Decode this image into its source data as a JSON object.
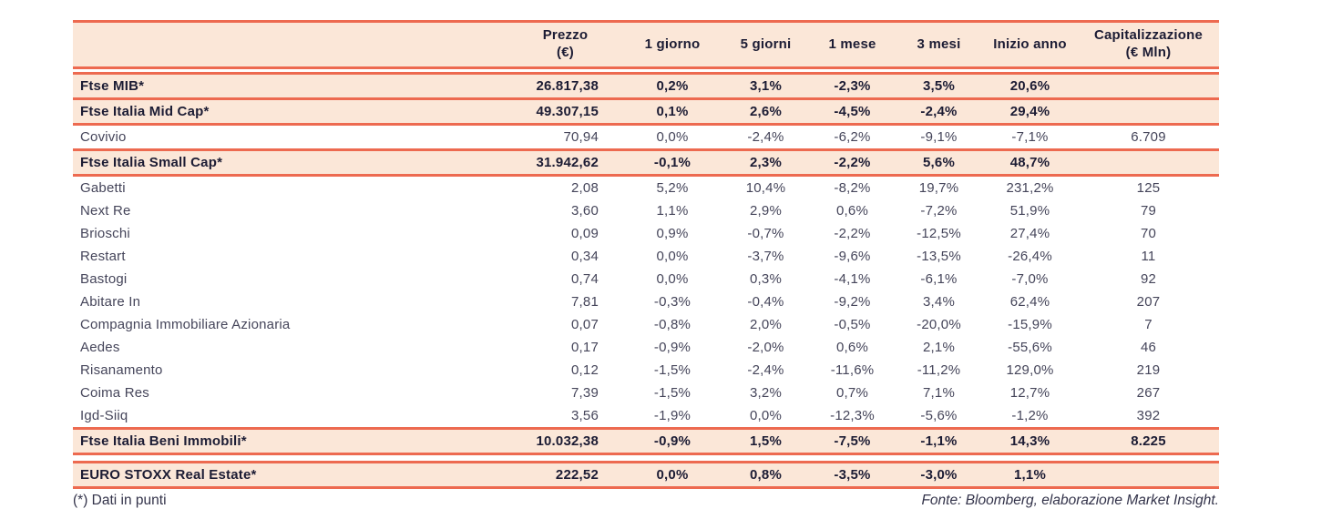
{
  "colors": {
    "accent_coral": "#ED6A50",
    "highlight_peach": "#FBE7D8",
    "text_dark": "#1C1C34",
    "text_regular": "#45455A"
  },
  "table": {
    "columns": [
      "",
      "Prezzo\n(€)",
      "1 giorno",
      "5 giorni",
      "1 mese",
      "3 mesi",
      "Inizio anno",
      "Capitalizzazione\n(€ Mln)"
    ],
    "rows": [
      {
        "label": "Ftse MIB*",
        "type": "index",
        "gap_before": true,
        "cells": [
          "26.817,38",
          "0,2%",
          "3,1%",
          "-2,3%",
          "3,5%",
          "20,6%",
          ""
        ]
      },
      {
        "label": "Ftse Italia Mid Cap*",
        "type": "index",
        "gap_before": false,
        "cells": [
          "49.307,15",
          "0,1%",
          "2,6%",
          "-4,5%",
          "-2,4%",
          "29,4%",
          ""
        ]
      },
      {
        "label": "Covivio",
        "type": "stock",
        "bordered": true,
        "cells": [
          "70,94",
          "0,0%",
          "-2,4%",
          "-6,2%",
          "-9,1%",
          "-7,1%",
          "6.709"
        ]
      },
      {
        "label": "Ftse Italia Small Cap*",
        "type": "index",
        "gap_before": false,
        "cells": [
          "31.942,62",
          "-0,1%",
          "2,3%",
          "-2,2%",
          "5,6%",
          "48,7%",
          ""
        ]
      },
      {
        "label": "Gabetti",
        "type": "stock",
        "bordered": false,
        "cells": [
          "2,08",
          "5,2%",
          "10,4%",
          "-8,2%",
          "19,7%",
          "231,2%",
          "125"
        ]
      },
      {
        "label": "Next Re",
        "type": "stock",
        "bordered": false,
        "cells": [
          "3,60",
          "1,1%",
          "2,9%",
          "0,6%",
          "-7,2%",
          "51,9%",
          "79"
        ]
      },
      {
        "label": "Brioschi",
        "type": "stock",
        "bordered": false,
        "cells": [
          "0,09",
          "0,9%",
          "-0,7%",
          "-2,2%",
          "-12,5%",
          "27,4%",
          "70"
        ]
      },
      {
        "label": "Restart",
        "type": "stock",
        "bordered": false,
        "cells": [
          "0,34",
          "0,0%",
          "-3,7%",
          "-9,6%",
          "-13,5%",
          "-26,4%",
          "11"
        ]
      },
      {
        "label": "Bastogi",
        "type": "stock",
        "bordered": false,
        "cells": [
          "0,74",
          "0,0%",
          "0,3%",
          "-4,1%",
          "-6,1%",
          "-7,0%",
          "92"
        ]
      },
      {
        "label": "Abitare In",
        "type": "stock",
        "bordered": false,
        "cells": [
          "7,81",
          "-0,3%",
          "-0,4%",
          "-9,2%",
          "3,4%",
          "62,4%",
          "207"
        ]
      },
      {
        "label": "Compagnia Immobiliare Azionaria",
        "type": "stock",
        "bordered": false,
        "cells": [
          "0,07",
          "-0,8%",
          "2,0%",
          "-0,5%",
          "-20,0%",
          "-15,9%",
          "7"
        ]
      },
      {
        "label": "Aedes",
        "type": "stock",
        "bordered": false,
        "cells": [
          "0,17",
          "-0,9%",
          "-2,0%",
          "0,6%",
          "2,1%",
          "-55,6%",
          "46"
        ]
      },
      {
        "label": "Risanamento",
        "type": "stock",
        "bordered": false,
        "cells": [
          "0,12",
          "-1,5%",
          "-2,4%",
          "-11,6%",
          "-11,2%",
          "129,0%",
          "219"
        ]
      },
      {
        "label": "Coima Res",
        "type": "stock",
        "bordered": false,
        "cells": [
          "7,39",
          "-1,5%",
          "3,2%",
          "0,7%",
          "7,1%",
          "12,7%",
          "267"
        ]
      },
      {
        "label": "Igd-Siiq",
        "type": "stock",
        "bordered": false,
        "cells": [
          "3,56",
          "-1,9%",
          "0,0%",
          "-12,3%",
          "-5,6%",
          "-1,2%",
          "392"
        ]
      },
      {
        "label": "Ftse Italia Beni Immobili*",
        "type": "index",
        "gap_before": false,
        "cells": [
          "10.032,38",
          "-0,9%",
          "1,5%",
          "-7,5%",
          "-1,1%",
          "14,3%",
          "8.225"
        ]
      },
      {
        "label": "EURO STOXX Real Estate*",
        "type": "index",
        "gap_before": true,
        "gap_large": true,
        "cells": [
          "222,52",
          "0,0%",
          "0,8%",
          "-3,5%",
          "-3,0%",
          "1,1%",
          ""
        ]
      }
    ]
  },
  "footer": {
    "note": "(*) Dati in punti",
    "source": "Fonte: Bloomberg, elaborazione Market Insight."
  }
}
